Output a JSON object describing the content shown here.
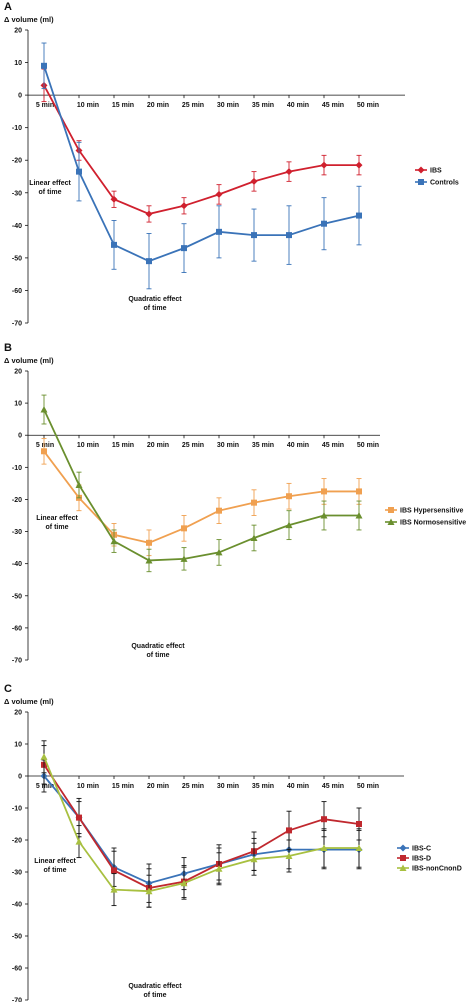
{
  "chart_data": [
    {
      "panel_label": "A",
      "type": "line",
      "ylabel": "Δ volume (ml)",
      "ylim": [
        -70,
        20
      ],
      "yticks": [
        20,
        10,
        0,
        -10,
        -20,
        -30,
        -40,
        -50,
        -60,
        -70
      ],
      "categories": [
        "5 min",
        "10 min",
        "15 min",
        "20 min",
        "25 min",
        "30 min",
        "35 min",
        "40 min",
        "45 min",
        "50 min"
      ],
      "series": [
        {
          "name": "IBS",
          "color": "#d0202e",
          "marker": "diamond",
          "values": [
            3,
            -17,
            -32,
            -36.5,
            -34,
            -30.5,
            -26.5,
            -23.5,
            -21.5,
            -21.5
          ],
          "errors": [
            5,
            3,
            2.5,
            2.5,
            2.5,
            3,
            3,
            3,
            3,
            3
          ]
        },
        {
          "name": "Controls",
          "color": "#3a73b8",
          "marker": "square",
          "values": [
            9,
            -23.5,
            -46,
            -51,
            -47,
            -42,
            -43,
            -43,
            -39.5,
            -37
          ],
          "errors": [
            7,
            9,
            7.5,
            8.5,
            7.5,
            8,
            8,
            9,
            8,
            9
          ]
        }
      ],
      "annotations": [
        {
          "text": "Linear effect of time",
          "lines": [
            "Linear effect",
            "of time"
          ]
        },
        {
          "text": "Quadratic effect of time",
          "lines": [
            "Quadratic effect",
            "of time"
          ]
        }
      ],
      "legend_position": "right"
    },
    {
      "panel_label": "B",
      "type": "line",
      "ylabel": "Δ volume (ml)",
      "ylim": [
        -70,
        20
      ],
      "yticks": [
        20,
        10,
        0,
        -10,
        -20,
        -30,
        -40,
        -50,
        -60,
        -70
      ],
      "categories": [
        "5 min",
        "10 min",
        "15 min",
        "20 min",
        "25 min",
        "30 min",
        "35 min",
        "40 min",
        "45 min",
        "50 min"
      ],
      "series": [
        {
          "name": "IBS Hypersensitive",
          "color": "#f0a050",
          "marker": "square",
          "values": [
            -5,
            -19.5,
            -31,
            -33.5,
            -29,
            -23.5,
            -21,
            -19,
            -17.5,
            -17.5
          ],
          "errors": [
            4,
            4,
            3.5,
            4,
            4,
            4,
            4,
            4,
            4,
            4
          ]
        },
        {
          "name": "IBS Normosensitive",
          "color": "#6a8f2e",
          "marker": "triangle",
          "values": [
            8,
            -15.5,
            -33,
            -39,
            -38.5,
            -36.5,
            -32,
            -28,
            -25,
            -25
          ],
          "errors": [
            4.5,
            4,
            3.5,
            3.5,
            3.5,
            4,
            4,
            4.5,
            4.5,
            4.5
          ]
        }
      ],
      "annotations": [
        {
          "text": "Linear effect of time",
          "lines": [
            "Linear effect",
            "of time"
          ]
        },
        {
          "text": "Quadratic effect of time",
          "lines": [
            "Quadratic effect",
            "of time"
          ]
        }
      ],
      "legend_position": "right"
    },
    {
      "panel_label": "C",
      "type": "line",
      "ylabel": "Δ volume (ml)",
      "ylim": [
        -70,
        20
      ],
      "yticks": [
        20,
        10,
        0,
        -10,
        -20,
        -30,
        -40,
        -50,
        -60,
        -70
      ],
      "categories": [
        "5 min",
        "10 min",
        "15 min",
        "20 min",
        "25 min",
        "30 min",
        "35 min",
        "40 min",
        "45 min",
        "50 min"
      ],
      "series": [
        {
          "name": "IBS-C",
          "color": "#3a73b8",
          "marker": "diamond",
          "values": [
            0,
            -13,
            -28.5,
            -33.5,
            -30.5,
            -27.5,
            -24.5,
            -23,
            -23,
            -23
          ],
          "errors": [
            5,
            5,
            6,
            6,
            5,
            5,
            5,
            6,
            6,
            6
          ]
        },
        {
          "name": "IBS-D",
          "color": "#c0282e",
          "marker": "square",
          "values": [
            3.5,
            -13,
            -29.5,
            -35,
            -33,
            -27.5,
            -23.5,
            -17,
            -13.5,
            -15
          ],
          "errors": [
            6,
            6,
            6,
            6,
            5,
            6,
            6,
            6,
            5.5,
            5
          ]
        },
        {
          "name": "IBS-nonCnonD",
          "color": "#a8c040",
          "marker": "triangle",
          "values": [
            6,
            -20.5,
            -35.5,
            -36,
            -33.5,
            -29,
            -26,
            -25,
            -22.5,
            -22.5
          ],
          "errors": [
            5,
            5,
            5,
            5,
            5,
            5,
            5,
            5,
            6,
            6
          ]
        }
      ],
      "annotations": [
        {
          "text": "Linear effect of time",
          "lines": [
            "Linear effect",
            "of time"
          ]
        },
        {
          "text": "Quadratic effect of time",
          "lines": [
            "Quadratic effect",
            "of time"
          ]
        }
      ],
      "legend_position": "right"
    }
  ]
}
